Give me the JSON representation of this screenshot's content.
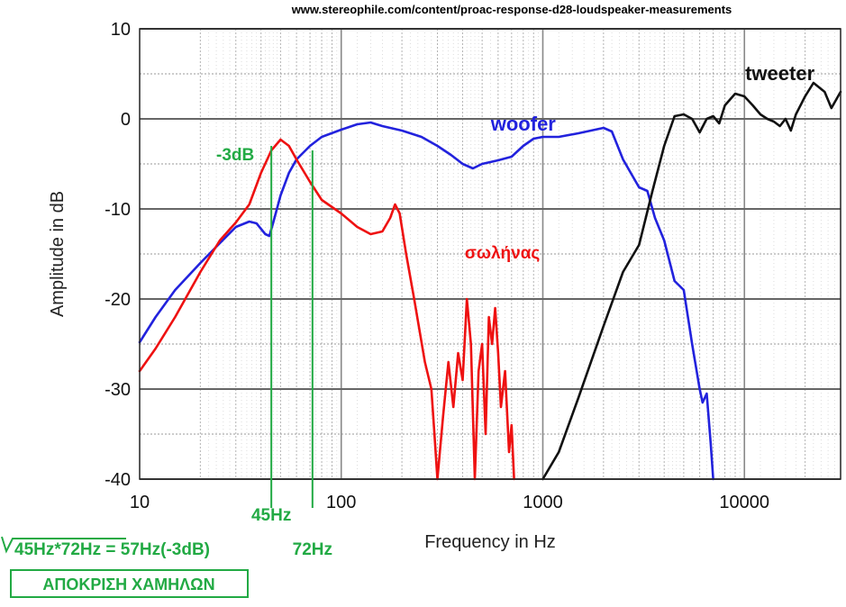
{
  "source_url": "www.stereophile.com/content/proac-response-d28-loudspeaker-measurements",
  "chart_data": {
    "type": "line",
    "title": "",
    "xlabel": "Frequency in Hz",
    "ylabel": "Amplitude in dB",
    "xscale": "log",
    "xlim": [
      10,
      30000
    ],
    "ylim": [
      -40,
      10
    ],
    "grid": true,
    "x_ticks": [
      10,
      100,
      1000,
      10000
    ],
    "x_tick_labels": [
      "10",
      "100",
      "1000",
      "10000"
    ],
    "y_ticks": [
      10,
      0,
      -10,
      -20,
      -30,
      -40
    ],
    "y_tick_labels": [
      "10",
      "0",
      "-10",
      "-20",
      "-30",
      "-40"
    ],
    "series": [
      {
        "name": "woofer",
        "color": "#2222dd",
        "points": [
          [
            10,
            -24.8
          ],
          [
            12,
            -22
          ],
          [
            15,
            -19
          ],
          [
            20,
            -16
          ],
          [
            25,
            -13.8
          ],
          [
            30,
            -12
          ],
          [
            35,
            -11.4
          ],
          [
            38,
            -11.6
          ],
          [
            42,
            -12.8
          ],
          [
            44,
            -13
          ],
          [
            46,
            -11.5
          ],
          [
            50,
            -8.5
          ],
          [
            55,
            -6
          ],
          [
            60,
            -4.5
          ],
          [
            70,
            -3
          ],
          [
            80,
            -2
          ],
          [
            100,
            -1.2
          ],
          [
            120,
            -0.6
          ],
          [
            140,
            -0.4
          ],
          [
            160,
            -0.8
          ],
          [
            200,
            -1.3
          ],
          [
            250,
            -2
          ],
          [
            300,
            -3
          ],
          [
            350,
            -4
          ],
          [
            400,
            -5
          ],
          [
            450,
            -5.5
          ],
          [
            500,
            -5
          ],
          [
            600,
            -4.6
          ],
          [
            700,
            -4.2
          ],
          [
            800,
            -3
          ],
          [
            900,
            -2.2
          ],
          [
            1000,
            -2
          ],
          [
            1200,
            -2
          ],
          [
            1500,
            -1.6
          ],
          [
            2000,
            -1
          ],
          [
            2200,
            -1.4
          ],
          [
            2500,
            -4.5
          ],
          [
            3000,
            -7.6
          ],
          [
            3300,
            -8
          ],
          [
            3600,
            -11
          ],
          [
            4000,
            -13.5
          ],
          [
            4500,
            -18
          ],
          [
            5000,
            -19
          ],
          [
            5500,
            -25
          ],
          [
            6000,
            -30
          ],
          [
            6200,
            -31.5
          ],
          [
            6500,
            -30.5
          ],
          [
            6800,
            -36
          ],
          [
            7000,
            -40
          ]
        ]
      },
      {
        "name": "tweeter",
        "color": "#111111",
        "points": [
          [
            1000,
            -40
          ],
          [
            1200,
            -37
          ],
          [
            1500,
            -31
          ],
          [
            2000,
            -23
          ],
          [
            2500,
            -17
          ],
          [
            3000,
            -14
          ],
          [
            3500,
            -8
          ],
          [
            4000,
            -3
          ],
          [
            4500,
            0.3
          ],
          [
            5000,
            0.5
          ],
          [
            5500,
            0
          ],
          [
            6000,
            -1.5
          ],
          [
            6500,
            0
          ],
          [
            7000,
            0.3
          ],
          [
            7500,
            -0.5
          ],
          [
            8000,
            1.5
          ],
          [
            9000,
            2.8
          ],
          [
            10000,
            2.5
          ],
          [
            11000,
            1.5
          ],
          [
            12000,
            0.5
          ],
          [
            13000,
            0
          ],
          [
            14000,
            -0.3
          ],
          [
            15000,
            -0.8
          ],
          [
            16000,
            0
          ],
          [
            17000,
            -1.3
          ],
          [
            18000,
            0.5
          ],
          [
            20000,
            2.5
          ],
          [
            22000,
            4
          ],
          [
            25000,
            3
          ],
          [
            27000,
            1.2
          ],
          [
            30000,
            3
          ]
        ]
      },
      {
        "name": "σωλήνας",
        "color": "#ee1111",
        "points": [
          [
            10,
            -28
          ],
          [
            12,
            -25.5
          ],
          [
            15,
            -22
          ],
          [
            20,
            -17
          ],
          [
            25,
            -13.5
          ],
          [
            30,
            -11.5
          ],
          [
            35,
            -9.5
          ],
          [
            40,
            -6
          ],
          [
            45,
            -3.5
          ],
          [
            50,
            -2.3
          ],
          [
            55,
            -3
          ],
          [
            60,
            -4.5
          ],
          [
            70,
            -7
          ],
          [
            80,
            -9
          ],
          [
            100,
            -10.5
          ],
          [
            120,
            -12
          ],
          [
            140,
            -12.8
          ],
          [
            160,
            -12.5
          ],
          [
            175,
            -11
          ],
          [
            185,
            -9.5
          ],
          [
            195,
            -10.5
          ],
          [
            210,
            -15
          ],
          [
            230,
            -20
          ],
          [
            260,
            -27
          ],
          [
            280,
            -30
          ],
          [
            290,
            -35
          ],
          [
            300,
            -40
          ],
          [
            320,
            -33
          ],
          [
            340,
            -27
          ],
          [
            360,
            -32
          ],
          [
            380,
            -26
          ],
          [
            400,
            -29
          ],
          [
            420,
            -20
          ],
          [
            440,
            -25
          ],
          [
            460,
            -40
          ],
          [
            480,
            -28
          ],
          [
            500,
            -25
          ],
          [
            520,
            -35
          ],
          [
            540,
            -22
          ],
          [
            560,
            -25
          ],
          [
            580,
            -21
          ],
          [
            600,
            -26
          ],
          [
            620,
            -32
          ],
          [
            650,
            -28
          ],
          [
            680,
            -37
          ],
          [
            700,
            -34
          ],
          [
            720,
            -40
          ]
        ]
      }
    ],
    "series_labels": [
      {
        "name": "woofer",
        "text": "woofer",
        "x": 800,
        "y": -1.3
      },
      {
        "name": "tweeter",
        "text": "tweeter",
        "x": 15000,
        "y": 4.3
      },
      {
        "name": "σωλήνας",
        "text": "σωλήνας",
        "x": 630,
        "y": -15.5
      }
    ],
    "markers": [
      {
        "name": "marker-45hz",
        "x": 45,
        "label": "45Hz",
        "y_top": -3
      },
      {
        "name": "marker-72hz",
        "x": 72,
        "label": "72Hz",
        "y_top": -3.5
      }
    ],
    "annotations": {
      "minus3db": "-3dB",
      "formula": "45Hz*72Hz = 57Hz(-3dB)",
      "boxed_label": "ΑΠΟΚΡΙΣΗ ΧΑΜΗΛΩΝ"
    },
    "annotation_color": "#22aa44"
  }
}
